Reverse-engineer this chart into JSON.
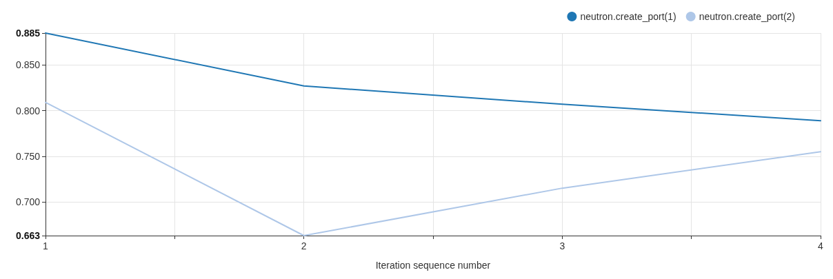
{
  "chart_data": {
    "type": "line",
    "xlabel": "Iteration sequence number",
    "x": [
      1,
      2,
      3,
      4
    ],
    "series": [
      {
        "name": "neutron.create_port(1)",
        "color": "#1f77b4",
        "values": [
          0.885,
          0.827,
          0.807,
          0.789
        ]
      },
      {
        "name": "neutron.create_port(2)",
        "color": "#aec7e8",
        "values": [
          0.809,
          0.663,
          0.715,
          0.755
        ]
      }
    ],
    "xlim": [
      1,
      4
    ],
    "xticks": [
      1,
      {
        "value": 1.5,
        "label": null
      },
      2,
      {
        "value": 2.5,
        "label": null
      },
      3,
      {
        "value": 3.5,
        "label": null
      },
      4
    ],
    "ylim": [
      0.663,
      0.885
    ],
    "yticks": [
      0.663,
      {
        "value": 0.7,
        "label": "0.700"
      },
      {
        "value": 0.75,
        "label": "0.750"
      },
      {
        "value": 0.8,
        "label": "0.800"
      },
      {
        "value": 0.85,
        "label": "0.850"
      },
      0.885
    ],
    "grid": true,
    "legend": "top right",
    "marker": "none",
    "line_style": "solid"
  }
}
